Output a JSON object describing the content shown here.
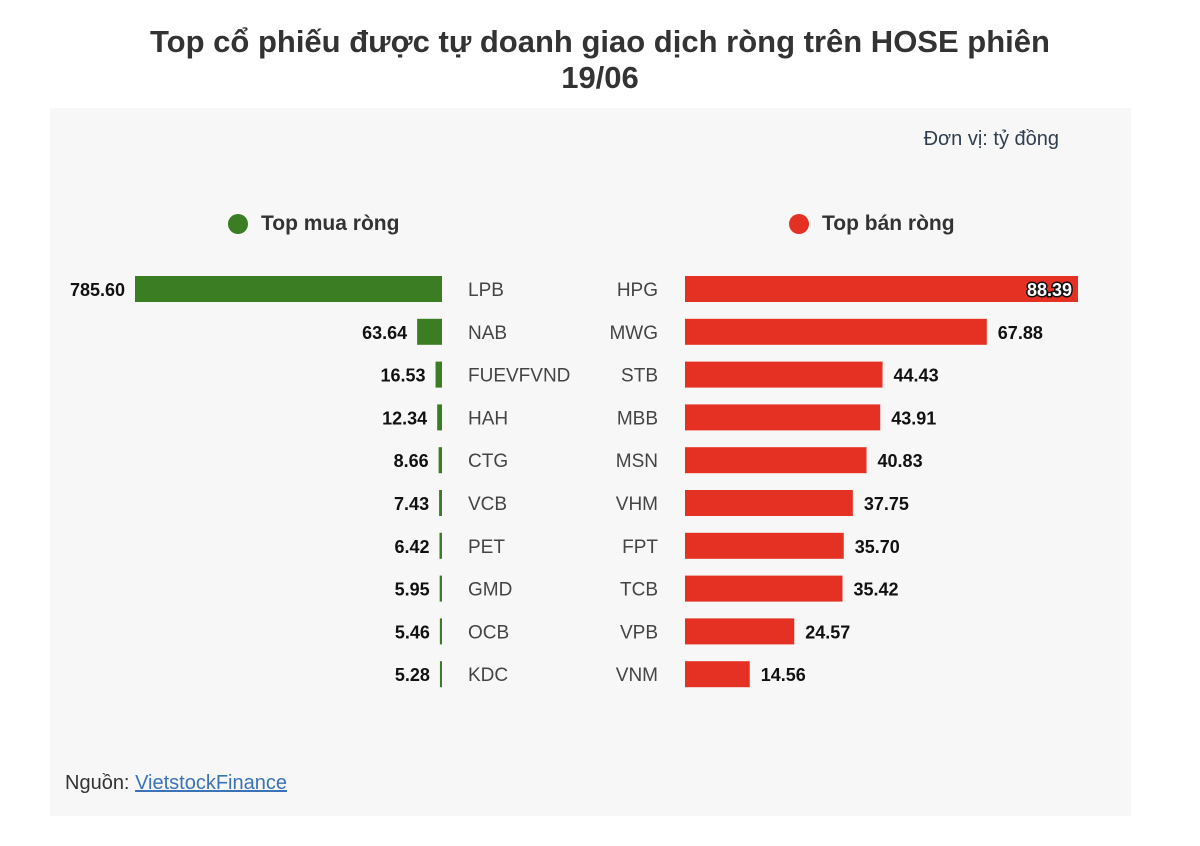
{
  "title_lines": [
    "Top cổ phiếu được tự doanh giao dịch ròng trên HOSE phiên",
    "19/06"
  ],
  "unit_label": "Đơn vị: tỷ đồng",
  "legend": {
    "buy_label": "Top mua ròng",
    "sell_label": "Top bán ròng",
    "buy_color": "#3a7d22",
    "sell_color": "#e53123"
  },
  "source": {
    "label": "Nguồn:",
    "link_text": "VietstockFinance"
  },
  "chart_data": {
    "type": "bar",
    "orientation": "horizontal",
    "panels": [
      {
        "name": "Top mua ròng",
        "direction": "left",
        "color": "#3a7d22",
        "categories": [
          "LPB",
          "NAB",
          "FUEVFVND",
          "HAH",
          "CTG",
          "VCB",
          "PET",
          "GMD",
          "OCB",
          "KDC"
        ],
        "values": [
          785.6,
          63.64,
          16.53,
          12.34,
          8.66,
          7.43,
          6.42,
          5.95,
          5.46,
          5.28
        ],
        "labels": [
          "785.60",
          "63.64",
          "16.53",
          "12.34",
          "8.66",
          "7.43",
          "6.42",
          "5.95",
          "5.46",
          "5.28"
        ]
      },
      {
        "name": "Top bán ròng",
        "direction": "right",
        "color": "#e53123",
        "categories": [
          "HPG",
          "MWG",
          "STB",
          "MBB",
          "MSN",
          "VHM",
          "FPT",
          "TCB",
          "VPB",
          "VNM"
        ],
        "values": [
          88.39,
          67.88,
          44.43,
          43.91,
          40.83,
          37.75,
          35.7,
          35.42,
          24.57,
          14.56
        ],
        "labels": [
          "88.39",
          "67.88",
          "44.43",
          "43.91",
          "40.83",
          "37.75",
          "35.70",
          "35.42",
          "24.57",
          "14.56"
        ]
      }
    ]
  }
}
